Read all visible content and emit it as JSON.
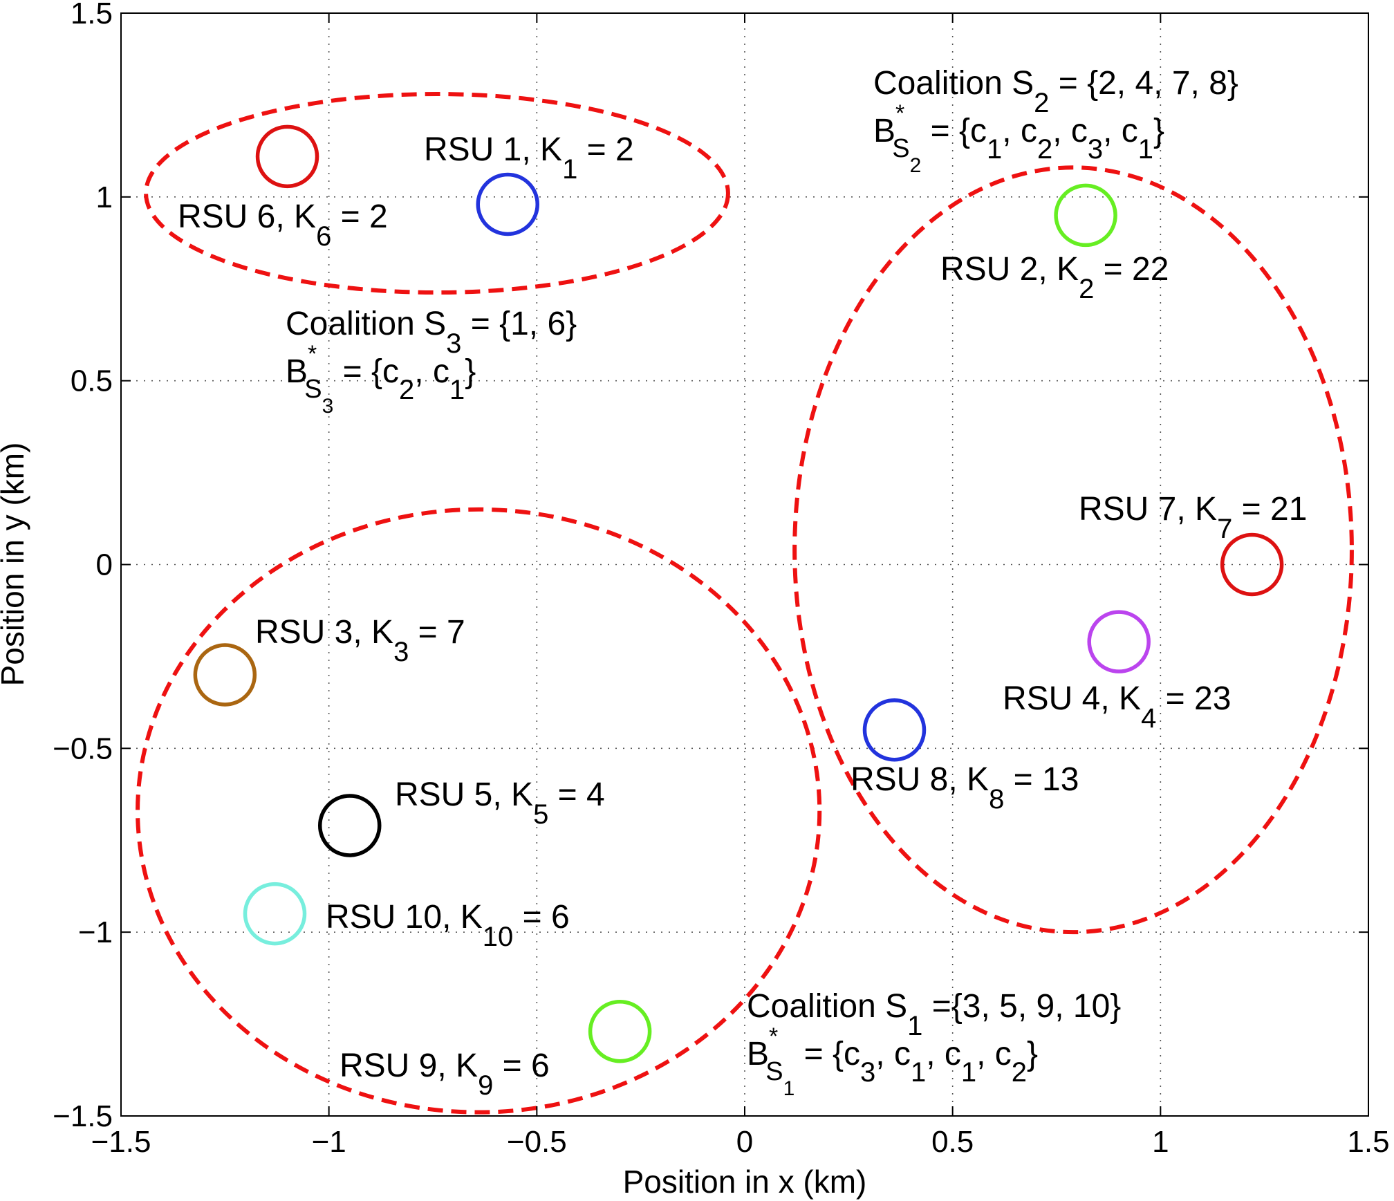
{
  "chart_data": {
    "type": "scatter",
    "xlabel": "Position in x (km)",
    "ylabel": "Position in y (km)",
    "xlim": [
      -1.5,
      1.5
    ],
    "ylim": [
      -1.5,
      1.5
    ],
    "xticks": [
      -1.5,
      -1,
      -0.5,
      0,
      0.5,
      1,
      1.5
    ],
    "yticks": [
      -1.5,
      -1,
      -0.5,
      0,
      0.5,
      1,
      1.5
    ],
    "xtick_labels": [
      "−1.5",
      "−1",
      "−0.5",
      "0",
      "0.5",
      "1",
      "1.5"
    ],
    "ytick_labels": [
      "−1.5",
      "−1",
      "−0.5",
      "0",
      "0.5",
      "1",
      "1.5"
    ],
    "grid": true,
    "points": [
      {
        "label": "RSU 1",
        "K": "K",
        "sub": "1",
        "value": "= 2",
        "x": -0.57,
        "y": 0.98,
        "color": "#2233dd"
      },
      {
        "label": "RSU 2",
        "K": "K",
        "sub": "2",
        "value": "= 22",
        "x": 0.82,
        "y": 0.95,
        "color": "#66ee22"
      },
      {
        "label": "RSU 3",
        "K": "K",
        "sub": "3",
        "value": "= 7",
        "x": -1.25,
        "y": -0.3,
        "color": "#aa6611"
      },
      {
        "label": "RSU 4",
        "K": "K",
        "sub": "4",
        "value": "= 23",
        "x": 0.9,
        "y": -0.21,
        "color": "#bb44ee"
      },
      {
        "label": "RSU 5",
        "K": "K",
        "sub": "5",
        "value": "= 4",
        "x": -0.95,
        "y": -0.71,
        "color": "#000000"
      },
      {
        "label": "RSU 6",
        "K": "K",
        "sub": "6",
        "value": "= 2",
        "x": -1.1,
        "y": 1.11,
        "color": "#dd1111"
      },
      {
        "label": "RSU 7",
        "K": "K",
        "sub": "7",
        "value": "= 21",
        "x": 1.22,
        "y": 0.0,
        "color": "#dd1111"
      },
      {
        "label": "RSU 8",
        "K": "K",
        "sub": "8",
        "value": "= 13",
        "x": 0.36,
        "y": -0.45,
        "color": "#2233dd"
      },
      {
        "label": "RSU 9",
        "K": "K",
        "sub": "9",
        "value": "= 6",
        "x": -0.3,
        "y": -1.27,
        "color": "#66ee22"
      },
      {
        "label": "RSU 10",
        "K": "K",
        "sub": "10",
        "value": "= 6",
        "x": -1.13,
        "y": -0.95,
        "color": "#77eedd"
      }
    ],
    "coalitions": [
      {
        "name": "Coalition S",
        "sub": "1",
        "members": "={3, 5, 9, 10}",
        "b_star": "*",
        "b_sub": "S",
        "b_subsub": "1",
        "b_open": "= {c",
        "b_items": [
          [
            "3",
            ", c"
          ],
          [
            "1",
            ", c"
          ],
          [
            "1",
            ", c"
          ],
          [
            "2",
            "}"
          ]
        ],
        "cx": -0.64,
        "cy": -0.67,
        "rx": 0.82,
        "ry": 0.82,
        "color": "#ee1111"
      },
      {
        "name": "Coalition S",
        "sub": "2",
        "members": "= {2, 4, 7, 8}",
        "b_star": "*",
        "b_sub": "S",
        "b_subsub": "2",
        "b_open": "= {c",
        "b_items": [
          [
            "1",
            ", c"
          ],
          [
            "2",
            ", c"
          ],
          [
            "3",
            ", c"
          ],
          [
            "1",
            "}"
          ]
        ],
        "cx": 0.79,
        "cy": 0.04,
        "rx": 0.67,
        "ry": 1.04,
        "color": "#ee1111"
      },
      {
        "name": "Coalition S",
        "sub": "3",
        "members": "= {1, 6}",
        "b_star": "*",
        "b_sub": "S",
        "b_subsub": "3",
        "b_open": "= {c",
        "b_items": [
          [
            "2",
            ", c"
          ],
          [
            "1",
            "}"
          ]
        ],
        "cx": -0.74,
        "cy": 1.01,
        "rx": 0.7,
        "ry": 0.27,
        "color": "#ee1111"
      }
    ]
  }
}
